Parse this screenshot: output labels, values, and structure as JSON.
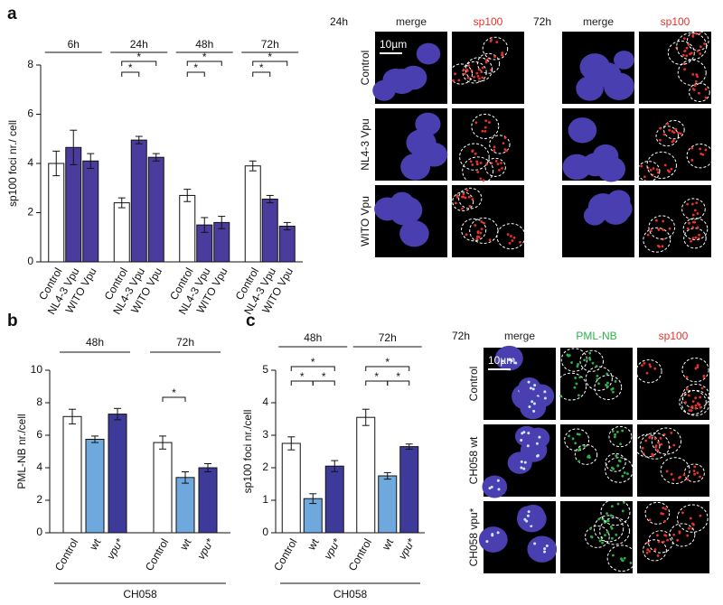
{
  "chart_data": [
    {
      "type": "bar",
      "panel": "a",
      "ylabel": "sp100 foci nr./ cell",
      "categories": [
        "6h",
        "24h",
        "48h",
        "72h"
      ],
      "series": [
        {
          "name": "Control",
          "color": "#ffffff",
          "values": [
            4.0,
            2.4,
            2.7,
            3.9
          ],
          "errors": [
            0.5,
            0.2,
            0.25,
            0.2
          ]
        },
        {
          "name": "NL4-3 Vpu",
          "color": "#4a3c9c",
          "values": [
            4.65,
            4.95,
            1.5,
            2.55
          ],
          "errors": [
            0.7,
            0.15,
            0.3,
            0.15
          ]
        },
        {
          "name": "WITO Vpu",
          "color": "#4a3c9c",
          "values": [
            4.1,
            4.25,
            1.6,
            1.45
          ],
          "errors": [
            0.3,
            0.15,
            0.25,
            0.15
          ]
        }
      ],
      "significance": [
        [],
        [
          {
            "span": [
              0,
              1
            ],
            "label": "*"
          },
          {
            "span": [
              0,
              2
            ],
            "label": "*"
          }
        ],
        [
          {
            "span": [
              0,
              1
            ],
            "label": "*"
          },
          {
            "span": [
              0,
              2
            ],
            "label": "*"
          }
        ],
        [
          {
            "span": [
              0,
              1
            ],
            "label": "*"
          },
          {
            "span": [
              0,
              2
            ],
            "label": "*"
          }
        ]
      ],
      "ylim": [
        0,
        8
      ],
      "yticks": [
        0,
        2,
        4,
        6,
        8
      ]
    },
    {
      "type": "bar",
      "panel": "b",
      "ylabel": "PML-NB nr./cell",
      "footer": "CH058",
      "categories": [
        "48h",
        "72h"
      ],
      "series": [
        {
          "name": "Control",
          "color": "#ffffff",
          "values": [
            7.15,
            5.55
          ],
          "errors": [
            0.45,
            0.4
          ]
        },
        {
          "name": "wt",
          "color": "#6fa8dc",
          "values": [
            5.75,
            3.4
          ],
          "errors": [
            0.2,
            0.35
          ]
        },
        {
          "name": "vpu*",
          "color": "#3d3a9a",
          "italic": true,
          "values": [
            7.3,
            4.0
          ],
          "errors": [
            0.35,
            0.25
          ]
        }
      ],
      "significance": [
        [],
        [
          {
            "span": [
              0,
              1
            ],
            "label": "*"
          }
        ]
      ],
      "ylim": [
        0,
        10
      ],
      "yticks": [
        0,
        2,
        4,
        6,
        8,
        10
      ]
    },
    {
      "type": "bar",
      "panel": "c",
      "ylabel": "sp100 foci nr./cell",
      "footer": "CH058",
      "categories": [
        "48h",
        "72h"
      ],
      "series": [
        {
          "name": "Control",
          "color": "#ffffff",
          "values": [
            2.75,
            3.55
          ],
          "errors": [
            0.2,
            0.25
          ]
        },
        {
          "name": "wt",
          "color": "#6fa8dc",
          "values": [
            1.05,
            1.75
          ],
          "errors": [
            0.15,
            0.1
          ]
        },
        {
          "name": "vpu*",
          "color": "#3d3a9a",
          "italic": true,
          "values": [
            2.05,
            2.65
          ],
          "errors": [
            0.17,
            0.08
          ]
        }
      ],
      "significance": [
        [
          {
            "span": [
              0,
              1
            ],
            "label": "*"
          },
          {
            "span": [
              1,
              2
            ],
            "label": "*"
          },
          {
            "span": [
              0,
              2
            ],
            "label": "*"
          }
        ],
        [
          {
            "span": [
              0,
              1
            ],
            "label": "*"
          },
          {
            "span": [
              1,
              2
            ],
            "label": "*"
          },
          {
            "span": [
              0,
              2
            ],
            "label": "*"
          }
        ]
      ],
      "ylim": [
        0,
        5
      ],
      "yticks": [
        0,
        1,
        2,
        3,
        4,
        5
      ]
    }
  ],
  "micrographs": [
    {
      "time": "24h",
      "columns": [
        "merge",
        "sp100"
      ],
      "column_colors": [
        "#222222",
        "#e8322a"
      ],
      "rows": [
        "Control",
        "NL4-3 Vpu",
        "WITO Vpu"
      ],
      "scale_bar": "10µm"
    },
    {
      "time": "72h",
      "columns": [
        "merge",
        "sp100"
      ],
      "column_colors": [
        "#222222",
        "#e8322a"
      ]
    },
    {
      "time": "72h",
      "columns": [
        "merge",
        "PML-NB",
        "sp100"
      ],
      "column_colors": [
        "#222222",
        "#2bb34a",
        "#e8322a"
      ],
      "rows": [
        "Control",
        "CH058 wt",
        "CH058 vpu*"
      ],
      "scale_bar": "10µm"
    }
  ]
}
